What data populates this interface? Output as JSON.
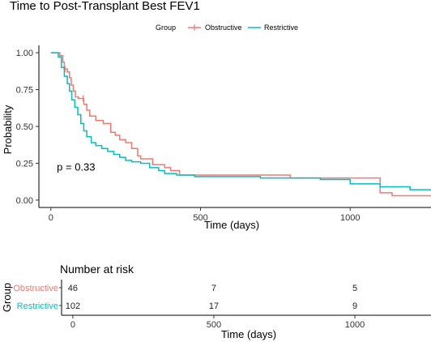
{
  "chart_data": [
    {
      "type": "line",
      "subtype": "kaplan-meier",
      "title": "Time to Post-Transplant Best FEV1",
      "xlabel": "Time (days)",
      "ylabel": "Probability",
      "xlim": [
        -40,
        1270
      ],
      "ylim": [
        -0.05,
        1.05
      ],
      "x_ticks": [
        0,
        500,
        1000
      ],
      "x_tick_labels": [
        "0",
        "500",
        "1000"
      ],
      "y_ticks": [
        0,
        0.25,
        0.5,
        0.75,
        1.0
      ],
      "y_tick_labels": [
        "0.00",
        "0.25",
        "0.50",
        "0.75",
        "1.00"
      ],
      "grid": false,
      "legend": {
        "position": "top-center",
        "title": "Group",
        "entries": [
          "Obstructive",
          "Restrictive"
        ]
      },
      "annotation": "p = 0.33",
      "annotation_at": [
        20,
        0.2
      ],
      "series": [
        {
          "name": "Obstructive",
          "color": "#F8766D",
          "x": [
            0,
            30,
            40,
            45,
            55,
            62,
            68,
            75,
            82,
            92,
            110,
            120,
            130,
            150,
            175,
            200,
            215,
            230,
            250,
            270,
            290,
            300,
            340,
            380,
            400,
            430,
            500,
            700,
            800,
            1000,
            1100,
            1140
          ],
          "y": [
            1.0,
            0.98,
            0.935,
            0.89,
            0.87,
            0.83,
            0.78,
            0.74,
            0.7,
            0.69,
            0.65,
            0.61,
            0.57,
            0.54,
            0.52,
            0.46,
            0.44,
            0.41,
            0.39,
            0.35,
            0.3,
            0.28,
            0.24,
            0.22,
            0.2,
            0.17,
            0.17,
            0.17,
            0.15,
            0.15,
            0.05,
            0.03
          ],
          "censor_x": [
            47,
            108
          ]
        },
        {
          "name": "Restrictive",
          "color": "#00BFC4",
          "x": [
            0,
            25,
            35,
            45,
            55,
            62,
            70,
            80,
            90,
            100,
            110,
            120,
            135,
            150,
            170,
            190,
            210,
            230,
            250,
            270,
            300,
            330,
            360,
            380,
            420,
            480,
            550,
            700,
            900,
            1000,
            1100,
            1200
          ],
          "y": [
            1.0,
            0.97,
            0.9,
            0.84,
            0.79,
            0.74,
            0.68,
            0.63,
            0.58,
            0.52,
            0.47,
            0.43,
            0.39,
            0.37,
            0.35,
            0.33,
            0.31,
            0.29,
            0.27,
            0.26,
            0.25,
            0.22,
            0.2,
            0.18,
            0.17,
            0.16,
            0.16,
            0.15,
            0.14,
            0.11,
            0.09,
            0.07
          ],
          "censor_x": []
        }
      ]
    },
    {
      "type": "table",
      "title": "Number at risk",
      "xlabel": "Time (days)",
      "ylabel": "Group",
      "x_ticks": [
        0,
        500,
        1000
      ],
      "rows": [
        {
          "name": "Obstructive",
          "color": "#F8766D",
          "values": [
            46,
            7,
            5
          ]
        },
        {
          "name": "Restrictive",
          "color": "#00BFC4",
          "values": [
            102,
            17,
            9
          ]
        }
      ]
    }
  ]
}
